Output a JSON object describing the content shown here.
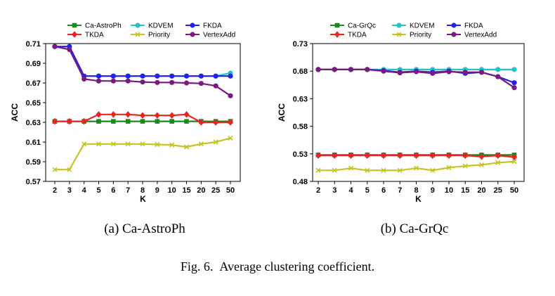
{
  "figure": {
    "caption_label": "Fig. 6.",
    "caption_text": "Average clustering coefficient."
  },
  "series_styles": {
    "Ca-AstroPh": {
      "color": "#1a8a1a",
      "marker": "square"
    },
    "Ca-GrQc": {
      "color": "#1a8a1a",
      "marker": "square"
    },
    "TKDA": {
      "color": "#ee2222",
      "marker": "diamond"
    },
    "KDVEM": {
      "color": "#22c4cc",
      "marker": "circle"
    },
    "Priority": {
      "color": "#c4c422",
      "marker": "x"
    },
    "FKDA": {
      "color": "#2222ee",
      "marker": "circle"
    },
    "VertexAdd": {
      "color": "#7a1a80",
      "marker": "circle"
    }
  },
  "chart_data": [
    {
      "type": "line",
      "subcaption": "(a) Ca-AstroPh",
      "xlabel": "K",
      "ylabel": "ACC",
      "categories": [
        "2",
        "3",
        "4",
        "5",
        "6",
        "7",
        "8",
        "9",
        "10",
        "15",
        "20",
        "25",
        "50"
      ],
      "ylim": [
        0.57,
        0.71
      ],
      "yticks": [
        "0.57",
        "0.59",
        "0.61",
        "0.63",
        "0.65",
        "0.67",
        "0.69",
        "0.71"
      ],
      "legend_position": "top",
      "grid": false,
      "series": [
        {
          "name": "Ca-AstroPh",
          "values": [
            0.631,
            0.631,
            0.631,
            0.631,
            0.631,
            0.631,
            0.631,
            0.631,
            0.631,
            0.631,
            0.631,
            0.631,
            0.631
          ]
        },
        {
          "name": "TKDA",
          "values": [
            0.631,
            0.631,
            0.631,
            0.638,
            0.638,
            0.638,
            0.637,
            0.637,
            0.637,
            0.638,
            0.63,
            0.63,
            0.63
          ]
        },
        {
          "name": "KDVEM",
          "values": [
            0.707,
            0.707,
            0.677,
            0.677,
            0.677,
            0.677,
            0.677,
            0.677,
            0.677,
            0.677,
            0.677,
            0.677,
            0.68
          ]
        },
        {
          "name": "Priority",
          "values": [
            0.582,
            0.582,
            0.608,
            0.608,
            0.608,
            0.608,
            0.608,
            0.6075,
            0.607,
            0.605,
            0.608,
            0.61,
            0.614
          ]
        },
        {
          "name": "FKDA",
          "values": [
            0.707,
            0.707,
            0.677,
            0.677,
            0.677,
            0.677,
            0.677,
            0.677,
            0.677,
            0.677,
            0.677,
            0.677,
            0.677
          ]
        },
        {
          "name": "VertexAdd",
          "values": [
            0.707,
            0.704,
            0.674,
            0.672,
            0.672,
            0.672,
            0.671,
            0.6705,
            0.6705,
            0.67,
            0.6695,
            0.667,
            0.657
          ]
        }
      ]
    },
    {
      "type": "line",
      "subcaption": "(b) Ca-GrQc",
      "xlabel": "K",
      "ylabel": "ACC",
      "categories": [
        "2",
        "3",
        "4",
        "5",
        "6",
        "7",
        "8",
        "9",
        "10",
        "15",
        "20",
        "25",
        "50"
      ],
      "ylim": [
        0.48,
        0.73
      ],
      "yticks": [
        "0.48",
        "0.53",
        "0.58",
        "0.63",
        "0.68",
        "0.73"
      ],
      "legend_position": "top",
      "grid": false,
      "series": [
        {
          "name": "Ca-GrQc",
          "values": [
            0.528,
            0.528,
            0.528,
            0.528,
            0.528,
            0.528,
            0.528,
            0.528,
            0.528,
            0.528,
            0.528,
            0.528,
            0.528
          ]
        },
        {
          "name": "TKDA",
          "values": [
            0.527,
            0.527,
            0.527,
            0.527,
            0.527,
            0.527,
            0.527,
            0.527,
            0.527,
            0.527,
            0.525,
            0.527,
            0.524
          ]
        },
        {
          "name": "KDVEM",
          "values": [
            0.683,
            0.683,
            0.683,
            0.683,
            0.683,
            0.683,
            0.683,
            0.683,
            0.683,
            0.683,
            0.683,
            0.683,
            0.683
          ]
        },
        {
          "name": "Priority",
          "values": [
            0.5,
            0.5,
            0.504,
            0.5,
            0.5,
            0.5,
            0.504,
            0.5,
            0.505,
            0.508,
            0.51,
            0.514,
            0.516
          ]
        },
        {
          "name": "FKDA",
          "values": [
            0.683,
            0.683,
            0.683,
            0.683,
            0.681,
            0.678,
            0.68,
            0.678,
            0.68,
            0.676,
            0.678,
            0.67,
            0.659
          ]
        },
        {
          "name": "VertexAdd",
          "values": [
            0.683,
            0.683,
            0.683,
            0.683,
            0.68,
            0.677,
            0.679,
            0.676,
            0.679,
            0.678,
            0.678,
            0.67,
            0.65
          ]
        }
      ]
    }
  ]
}
